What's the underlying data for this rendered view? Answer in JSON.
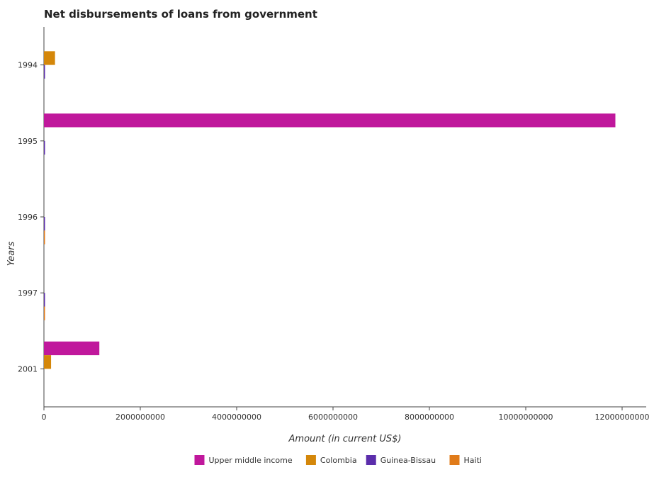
{
  "chart_data": {
    "type": "bar",
    "orientation": "horizontal",
    "title": "Net disbursements of loans from government",
    "xlabel": "Amount (in current US$)",
    "ylabel": "Years",
    "categories": [
      "1994",
      "1995",
      "1996",
      "1997",
      "2001"
    ],
    "xlim": [
      0,
      12500000000
    ],
    "xticks": [
      0,
      2000000000,
      4000000000,
      6000000000,
      8000000000,
      10000000000,
      12000000000
    ],
    "xtick_labels": [
      "0",
      "2000000000",
      "4000000000",
      "6000000000",
      "8000000000",
      "10000000000",
      "12000000000"
    ],
    "grid": false,
    "legend_position": "bottom",
    "series": [
      {
        "name": "Upper middle income",
        "color": "#c0189c",
        "values": [
          0,
          11860000000,
          0,
          0,
          1150000000
        ]
      },
      {
        "name": "Colombia",
        "color": "#d4870a",
        "values": [
          230000000,
          0,
          0,
          0,
          148000000
        ]
      },
      {
        "name": "Guinea-Bissau",
        "color": "#5b2dab",
        "values": [
          14000000,
          1500000,
          2000000,
          3000000,
          0
        ]
      },
      {
        "name": "Haiti",
        "color": "#e07b1a",
        "values": [
          0,
          0,
          5000000,
          7000000,
          0
        ]
      }
    ]
  }
}
